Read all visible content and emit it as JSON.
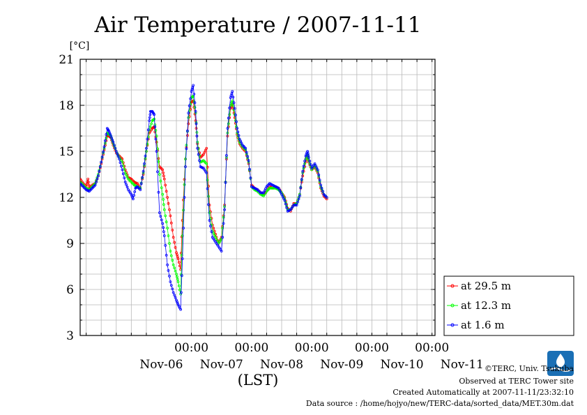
{
  "chart_data": {
    "type": "line",
    "title": "Air Temperature / 2007-11-11",
    "ylabel": "[°C]",
    "xlabel": "(LST)",
    "ylim": [
      3,
      21
    ],
    "xlim": [
      -0.85,
      5.05
    ],
    "yticks": [
      "3",
      "6",
      "9",
      "12",
      "15",
      "18",
      "21"
    ],
    "x_time_ticks": [
      {
        "x": 1,
        "label": "00:00"
      },
      {
        "x": 2,
        "label": "00:00"
      },
      {
        "x": 3,
        "label": "00:00"
      },
      {
        "x": 4,
        "label": "00:00"
      },
      {
        "x": 5,
        "label": "00:00"
      }
    ],
    "x_day_labels": [
      {
        "x": 0.5,
        "label": "Nov-06"
      },
      {
        "x": 1.5,
        "label": "Nov-07"
      },
      {
        "x": 2.5,
        "label": "Nov-08"
      },
      {
        "x": 3.5,
        "label": "Nov-09"
      },
      {
        "x": 4.5,
        "label": "Nov-10"
      },
      {
        "x": 5.5,
        "label": "Nov-11"
      }
    ],
    "grid": true,
    "legend_position": "right-bottom",
    "series": [
      {
        "name": "at 29.5 m",
        "color": "#ff0000",
        "points": [
          [
            -0.85,
            13.2
          ],
          [
            -0.8,
            12.9
          ],
          [
            -0.75,
            12.7
          ],
          [
            -0.72,
            13.2
          ],
          [
            -0.7,
            12.6
          ],
          [
            -0.65,
            12.8
          ],
          [
            -0.6,
            12.9
          ],
          [
            -0.55,
            13.4
          ],
          [
            -0.5,
            14.2
          ],
          [
            -0.45,
            15.1
          ],
          [
            -0.4,
            16.0
          ],
          [
            -0.37,
            16.0
          ],
          [
            -0.34,
            15.9
          ],
          [
            -0.3,
            15.4
          ],
          [
            -0.25,
            14.9
          ],
          [
            -0.2,
            14.7
          ],
          [
            -0.15,
            14.5
          ],
          [
            -0.1,
            13.8
          ],
          [
            -0.05,
            13.3
          ],
          [
            0.0,
            13.2
          ],
          [
            0.05,
            13.0
          ],
          [
            0.1,
            12.9
          ],
          [
            0.15,
            12.6
          ],
          [
            0.2,
            13.5
          ],
          [
            0.25,
            15.0
          ],
          [
            0.3,
            16.2
          ],
          [
            0.35,
            16.5
          ],
          [
            0.38,
            16.6
          ],
          [
            0.42,
            15.6
          ],
          [
            0.47,
            14.0
          ],
          [
            0.52,
            13.8
          ],
          [
            0.55,
            13.2
          ],
          [
            0.6,
            12.0
          ],
          [
            0.65,
            10.8
          ],
          [
            0.7,
            9.4
          ],
          [
            0.75,
            8.4
          ],
          [
            0.78,
            8.0
          ],
          [
            0.82,
            7.3
          ],
          [
            0.85,
            10.5
          ],
          [
            0.9,
            14.5
          ],
          [
            0.95,
            16.8
          ],
          [
            1.0,
            18.2
          ],
          [
            1.03,
            18.3
          ],
          [
            1.07,
            17.0
          ],
          [
            1.1,
            15.5
          ],
          [
            1.15,
            14.6
          ],
          [
            1.2,
            14.8
          ],
          [
            1.25,
            15.2
          ],
          [
            1.3,
            11.5
          ],
          [
            1.35,
            10.2
          ],
          [
            1.4,
            9.6
          ],
          [
            1.45,
            9.0
          ],
          [
            1.5,
            9.4
          ],
          [
            1.55,
            11.5
          ],
          [
            1.6,
            16.0
          ],
          [
            1.65,
            17.8
          ],
          [
            1.68,
            18.1
          ],
          [
            1.72,
            17.2
          ],
          [
            1.76,
            16.1
          ],
          [
            1.8,
            15.5
          ],
          [
            1.85,
            15.2
          ],
          [
            1.9,
            15.0
          ],
          [
            1.95,
            14.2
          ],
          [
            2.0,
            12.8
          ],
          [
            2.05,
            12.6
          ],
          [
            2.1,
            12.5
          ],
          [
            2.15,
            12.3
          ],
          [
            2.2,
            12.2
          ],
          [
            2.25,
            12.4
          ],
          [
            2.3,
            12.7
          ],
          [
            2.35,
            12.6
          ],
          [
            2.4,
            12.7
          ],
          [
            2.45,
            12.6
          ],
          [
            2.5,
            12.3
          ],
          [
            2.55,
            12.0
          ],
          [
            2.6,
            11.3
          ],
          [
            2.65,
            11.1
          ],
          [
            2.7,
            11.6
          ],
          [
            2.75,
            11.6
          ],
          [
            2.8,
            12.2
          ],
          [
            2.85,
            13.4
          ],
          [
            2.9,
            14.3
          ],
          [
            2.93,
            14.7
          ],
          [
            2.95,
            14.3
          ],
          [
            3.0,
            13.8
          ],
          [
            3.05,
            14.0
          ],
          [
            3.1,
            13.6
          ],
          [
            3.15,
            12.6
          ],
          [
            3.2,
            12.1
          ],
          [
            3.25,
            11.9
          ]
        ]
      },
      {
        "name": "at 12.3 m",
        "color": "#00ff00",
        "points": [
          [
            -0.85,
            13.0
          ],
          [
            -0.8,
            12.8
          ],
          [
            -0.75,
            12.6
          ],
          [
            -0.7,
            12.5
          ],
          [
            -0.65,
            12.7
          ],
          [
            -0.6,
            12.9
          ],
          [
            -0.55,
            13.5
          ],
          [
            -0.5,
            14.3
          ],
          [
            -0.45,
            15.2
          ],
          [
            -0.4,
            16.2
          ],
          [
            -0.37,
            16.1
          ],
          [
            -0.34,
            16.0
          ],
          [
            -0.3,
            15.5
          ],
          [
            -0.25,
            15.0
          ],
          [
            -0.2,
            14.6
          ],
          [
            -0.15,
            14.3
          ],
          [
            -0.1,
            13.6
          ],
          [
            -0.05,
            13.2
          ],
          [
            0.0,
            13.0
          ],
          [
            0.05,
            12.8
          ],
          [
            0.1,
            12.7
          ],
          [
            0.15,
            12.6
          ],
          [
            0.2,
            13.6
          ],
          [
            0.25,
            15.0
          ],
          [
            0.3,
            16.4
          ],
          [
            0.35,
            17.0
          ],
          [
            0.38,
            17.1
          ],
          [
            0.42,
            16.0
          ],
          [
            0.47,
            13.5
          ],
          [
            0.52,
            12.2
          ],
          [
            0.55,
            11.2
          ],
          [
            0.6,
            10.0
          ],
          [
            0.65,
            8.5
          ],
          [
            0.7,
            7.6
          ],
          [
            0.75,
            7.0
          ],
          [
            0.78,
            6.5
          ],
          [
            0.82,
            5.7
          ],
          [
            0.85,
            9.5
          ],
          [
            0.9,
            14.5
          ],
          [
            0.95,
            17.2
          ],
          [
            1.0,
            18.5
          ],
          [
            1.03,
            18.6
          ],
          [
            1.07,
            17.5
          ],
          [
            1.1,
            15.6
          ],
          [
            1.15,
            14.3
          ],
          [
            1.2,
            14.4
          ],
          [
            1.25,
            14.2
          ],
          [
            1.3,
            11.0
          ],
          [
            1.35,
            9.8
          ],
          [
            1.4,
            9.4
          ],
          [
            1.45,
            9.0
          ],
          [
            1.5,
            9.3
          ],
          [
            1.55,
            11.4
          ],
          [
            1.6,
            16.2
          ],
          [
            1.65,
            18.0
          ],
          [
            1.68,
            18.3
          ],
          [
            1.72,
            17.4
          ],
          [
            1.76,
            16.2
          ],
          [
            1.8,
            15.6
          ],
          [
            1.85,
            15.3
          ],
          [
            1.9,
            15.1
          ],
          [
            1.95,
            14.3
          ],
          [
            2.0,
            12.7
          ],
          [
            2.05,
            12.5
          ],
          [
            2.1,
            12.4
          ],
          [
            2.15,
            12.2
          ],
          [
            2.2,
            12.1
          ],
          [
            2.25,
            12.4
          ],
          [
            2.3,
            12.6
          ],
          [
            2.35,
            12.6
          ],
          [
            2.4,
            12.6
          ],
          [
            2.45,
            12.5
          ],
          [
            2.5,
            12.3
          ],
          [
            2.55,
            11.9
          ],
          [
            2.6,
            11.2
          ],
          [
            2.65,
            11.2
          ],
          [
            2.7,
            11.5
          ],
          [
            2.75,
            11.6
          ],
          [
            2.8,
            12.2
          ],
          [
            2.85,
            13.6
          ],
          [
            2.9,
            14.5
          ],
          [
            2.93,
            14.8
          ],
          [
            2.95,
            14.4
          ],
          [
            3.0,
            13.8
          ],
          [
            3.05,
            14.1
          ],
          [
            3.1,
            13.7
          ],
          [
            3.15,
            12.7
          ],
          [
            3.2,
            12.2
          ],
          [
            3.25,
            12.0
          ]
        ]
      },
      {
        "name": "at 1.6 m",
        "color": "#0000ff",
        "points": [
          [
            -0.85,
            12.9
          ],
          [
            -0.8,
            12.7
          ],
          [
            -0.75,
            12.5
          ],
          [
            -0.7,
            12.4
          ],
          [
            -0.65,
            12.6
          ],
          [
            -0.6,
            12.8
          ],
          [
            -0.55,
            13.4
          ],
          [
            -0.5,
            14.3
          ],
          [
            -0.45,
            15.3
          ],
          [
            -0.4,
            16.5
          ],
          [
            -0.37,
            16.3
          ],
          [
            -0.34,
            16.0
          ],
          [
            -0.3,
            15.6
          ],
          [
            -0.25,
            15.0
          ],
          [
            -0.2,
            14.5
          ],
          [
            -0.15,
            13.8
          ],
          [
            -0.1,
            13.0
          ],
          [
            -0.05,
            12.5
          ],
          [
            0.0,
            12.2
          ],
          [
            0.03,
            11.9
          ],
          [
            0.07,
            12.6
          ],
          [
            0.1,
            12.7
          ],
          [
            0.15,
            12.5
          ],
          [
            0.2,
            13.7
          ],
          [
            0.25,
            15.2
          ],
          [
            0.3,
            17.0
          ],
          [
            0.32,
            17.6
          ],
          [
            0.35,
            17.6
          ],
          [
            0.38,
            17.4
          ],
          [
            0.42,
            15.0
          ],
          [
            0.47,
            11.0
          ],
          [
            0.52,
            10.3
          ],
          [
            0.55,
            9.5
          ],
          [
            0.6,
            7.6
          ],
          [
            0.65,
            6.5
          ],
          [
            0.7,
            5.8
          ],
          [
            0.75,
            5.3
          ],
          [
            0.78,
            5.0
          ],
          [
            0.82,
            4.7
          ],
          [
            0.85,
            8.0
          ],
          [
            0.9,
            14.0
          ],
          [
            0.95,
            17.5
          ],
          [
            1.0,
            18.9
          ],
          [
            1.03,
            19.3
          ],
          [
            1.07,
            17.6
          ],
          [
            1.1,
            15.2
          ],
          [
            1.15,
            14.0
          ],
          [
            1.2,
            13.9
          ],
          [
            1.25,
            13.6
          ],
          [
            1.3,
            10.5
          ],
          [
            1.35,
            9.4
          ],
          [
            1.4,
            9.1
          ],
          [
            1.45,
            8.8
          ],
          [
            1.5,
            8.5
          ],
          [
            1.55,
            11.2
          ],
          [
            1.6,
            16.5
          ],
          [
            1.65,
            18.5
          ],
          [
            1.68,
            18.9
          ],
          [
            1.72,
            17.8
          ],
          [
            1.76,
            16.5
          ],
          [
            1.8,
            15.8
          ],
          [
            1.85,
            15.4
          ],
          [
            1.9,
            15.2
          ],
          [
            1.95,
            14.4
          ],
          [
            2.0,
            12.7
          ],
          [
            2.05,
            12.6
          ],
          [
            2.1,
            12.5
          ],
          [
            2.15,
            12.3
          ],
          [
            2.2,
            12.3
          ],
          [
            2.25,
            12.7
          ],
          [
            2.3,
            12.9
          ],
          [
            2.35,
            12.8
          ],
          [
            2.4,
            12.7
          ],
          [
            2.45,
            12.6
          ],
          [
            2.5,
            12.2
          ],
          [
            2.55,
            11.8
          ],
          [
            2.6,
            11.1
          ],
          [
            2.65,
            11.2
          ],
          [
            2.7,
            11.5
          ],
          [
            2.75,
            11.5
          ],
          [
            2.8,
            12.1
          ],
          [
            2.85,
            13.7
          ],
          [
            2.9,
            14.7
          ],
          [
            2.93,
            15.0
          ],
          [
            2.95,
            14.6
          ],
          [
            3.0,
            13.9
          ],
          [
            3.05,
            14.2
          ],
          [
            3.1,
            13.8
          ],
          [
            3.15,
            12.8
          ],
          [
            3.2,
            12.2
          ],
          [
            3.25,
            12.0
          ]
        ]
      }
    ]
  },
  "footer": {
    "copyright": "©TERC, Univ. Tsukuba",
    "observed": "Observed at TERC Tower site",
    "created": "Created Automatically at 2007-11-11/23:32:10",
    "source": "Data source : /home/hojyo/new/TERC-data/sorted_data/MET.30m.dat"
  },
  "logo": {
    "name": "TERC logo",
    "color": "#1a6fb5"
  }
}
